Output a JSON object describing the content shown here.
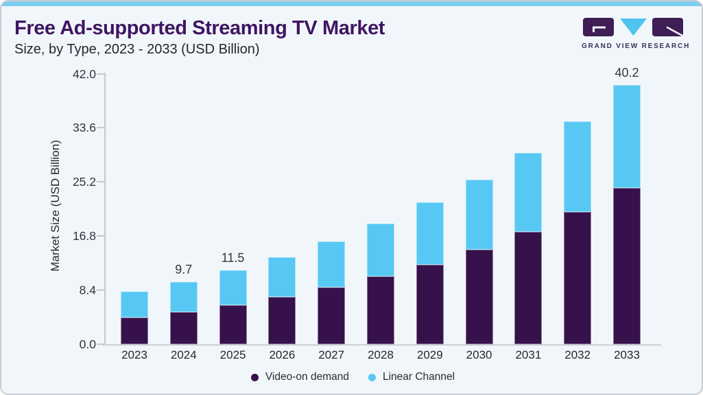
{
  "header": {
    "title": "Free Ad-supported Streaming TV Market",
    "subtitle": "Size, by Type, 2023 - 2033 (USD Billion)"
  },
  "logo": {
    "text": "GRAND VIEW RESEARCH",
    "purple": "#3f1d55",
    "blue": "#4ec4ef"
  },
  "chart_data": {
    "type": "bar",
    "stacked": true,
    "title": "Free Ad-supported Streaming TV Market Size, by Type, 2023 - 2033 (USD Billion)",
    "ylabel": "Market Size (USD Billion)",
    "ylim": [
      0,
      42
    ],
    "ytick_labels": [
      "0.0",
      "8.4",
      "16.8",
      "25.2",
      "33.6",
      "42.0"
    ],
    "ytick_values": [
      0,
      8.4,
      16.8,
      25.2,
      33.6,
      42
    ],
    "grid": false,
    "legend_position": "bottom",
    "categories": [
      "2023",
      "2024",
      "2025",
      "2026",
      "2027",
      "2028",
      "2029",
      "2030",
      "2031",
      "2032",
      "2033"
    ],
    "series": [
      {
        "name": "Video-on demand",
        "color": "#36114b",
        "values": [
          4.2,
          5.0,
          6.1,
          7.3,
          8.8,
          10.5,
          12.4,
          14.7,
          17.5,
          20.6,
          24.3
        ]
      },
      {
        "name": "Linear Channel",
        "color": "#57c8f3",
        "values": [
          4.0,
          4.7,
          5.4,
          6.2,
          7.2,
          8.2,
          9.6,
          10.9,
          12.2,
          14.0,
          15.9
        ]
      }
    ],
    "totals": [
      8.2,
      9.7,
      11.5,
      13.5,
      16.0,
      18.7,
      22.0,
      25.6,
      29.7,
      34.6,
      40.2
    ],
    "bar_labels": [
      "",
      "9.7",
      "11.5",
      "",
      "",
      "",
      "",
      "",
      "",
      "",
      "40.2"
    ]
  },
  "legend": {
    "items": [
      {
        "label": "Video-on demand",
        "color": "#36114b"
      },
      {
        "label": "Linear Channel",
        "color": "#57c8f3"
      }
    ]
  }
}
